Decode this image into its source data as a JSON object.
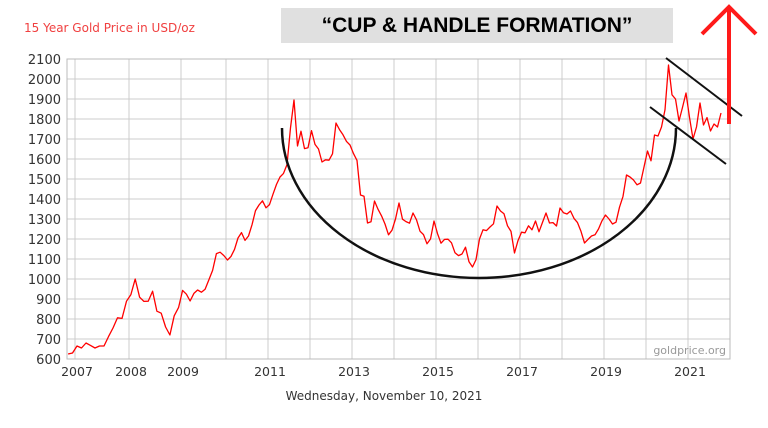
{
  "chart_data": {
    "type": "line",
    "title": "15 Year Gold Price in USD/oz",
    "annotation_title": "“CUP & HANDLE FORMATION”",
    "watermark": "goldprice.org",
    "date_caption": "Wednesday, November 10, 2021",
    "xlabel": "",
    "ylabel": "",
    "ylim": [
      600,
      2100
    ],
    "yticks": [
      600,
      700,
      800,
      900,
      1000,
      1100,
      1200,
      1300,
      1400,
      1500,
      1600,
      1700,
      1800,
      1900,
      2000,
      2100
    ],
    "xticks": [
      "2007",
      "2008",
      "2009",
      "2011",
      "2013",
      "2015",
      "2017",
      "2019",
      "2021"
    ],
    "grid": true,
    "line_color": "#ff0000",
    "overlay_color": "#000000",
    "arrow_color": "#ff1a1a",
    "overlays": [
      "cup-arc",
      "handle-upper-trendline",
      "handle-lower-trendline",
      "breakout-arrow-up"
    ],
    "series": [
      {
        "x_start": 2006.87,
        "x_step_months": 1,
        "values": [
          625,
          630,
          665,
          655,
          680,
          668,
          655,
          665,
          665,
          712,
          755,
          806,
          803,
          889,
          922,
          1000,
          909,
          888,
          889,
          939,
          839,
          829,
          760,
          720,
          816,
          858,
          943,
          924,
          890,
          928,
          945,
          934,
          949,
          996,
          1043,
          1127,
          1134,
          1117,
          1095,
          1113,
          1148,
          1205,
          1232,
          1193,
          1215,
          1271,
          1342,
          1370,
          1391,
          1356,
          1372,
          1424,
          1473,
          1510,
          1528,
          1572,
          1756,
          1895,
          1665,
          1739,
          1652,
          1656,
          1742,
          1673,
          1650,
          1585,
          1596,
          1594,
          1626,
          1780,
          1747,
          1721,
          1688,
          1670,
          1627,
          1593,
          1420,
          1414,
          1280,
          1286,
          1390,
          1349,
          1316,
          1275,
          1221,
          1244,
          1300,
          1380,
          1299,
          1287,
          1279,
          1330,
          1296,
          1239,
          1222,
          1176,
          1200,
          1290,
          1227,
          1179,
          1198,
          1199,
          1181,
          1131,
          1117,
          1125,
          1159,
          1086,
          1060,
          1097,
          1200,
          1246,
          1242,
          1260,
          1276,
          1365,
          1340,
          1326,
          1266,
          1238,
          1130,
          1192,
          1234,
          1231,
          1266,
          1246,
          1290,
          1236,
          1283,
          1330,
          1280,
          1282,
          1265,
          1355,
          1331,
          1325,
          1340,
          1303,
          1282,
          1238,
          1180,
          1198,
          1215,
          1221,
          1250,
          1291,
          1320,
          1300,
          1275,
          1284,
          1359,
          1413,
          1520,
          1510,
          1495,
          1471,
          1480,
          1560,
          1640,
          1591,
          1720,
          1715,
          1760,
          1846,
          2070,
          1921,
          1900,
          1790,
          1858,
          1930,
          1808,
          1700,
          1760,
          1880,
          1770,
          1807,
          1740,
          1775,
          1760,
          1830
        ]
      }
    ]
  }
}
